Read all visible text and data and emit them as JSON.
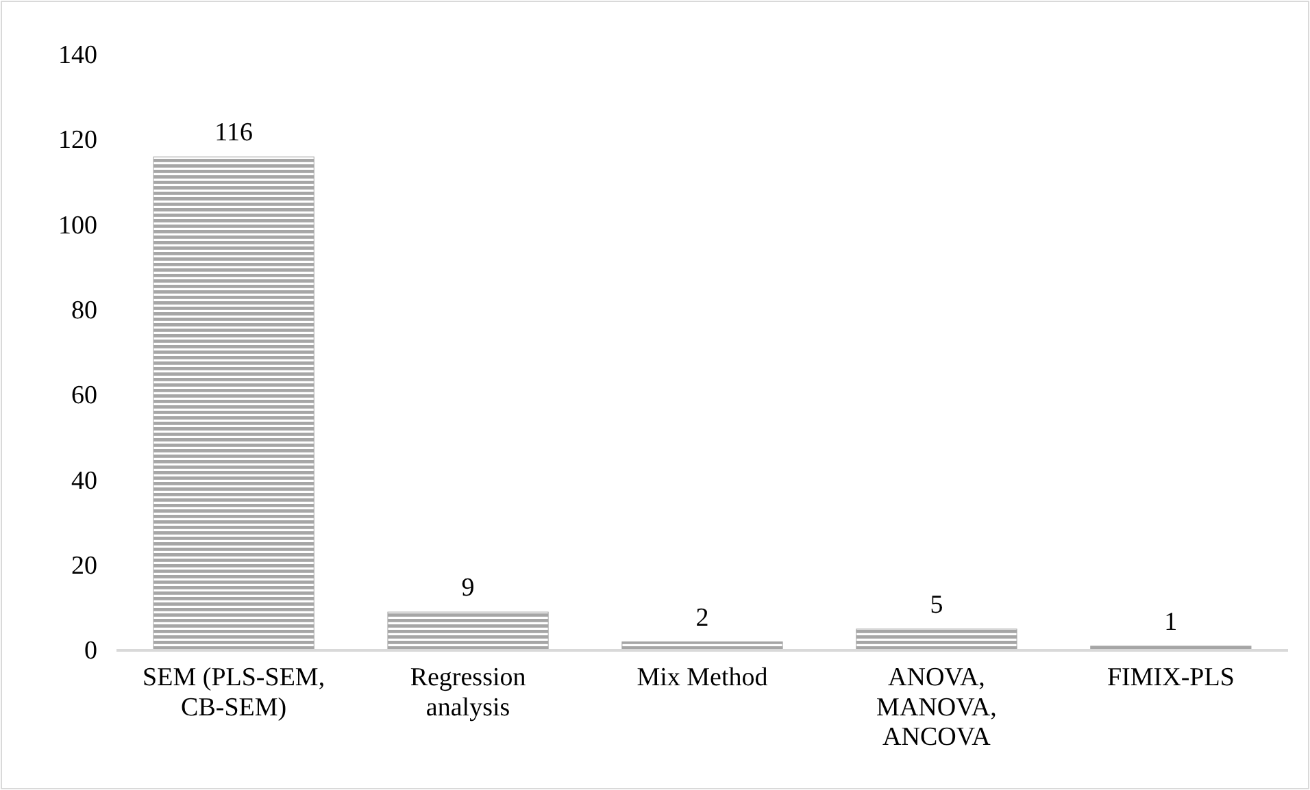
{
  "chart_data": {
    "type": "bar",
    "categories": [
      "SEM (PLS-SEM, CB-SEM)",
      "Regression analysis",
      "Mix Method",
      "ANOVA, MANOVA, ANCOVA",
      "FIMIX-PLS"
    ],
    "values": [
      116,
      9,
      2,
      5,
      1
    ],
    "color": "#a6a6a6",
    "ylim": [
      0,
      140
    ],
    "yticks": [
      0,
      20,
      40,
      60,
      80,
      100,
      120,
      140
    ],
    "grid": false,
    "data_labels": true
  }
}
